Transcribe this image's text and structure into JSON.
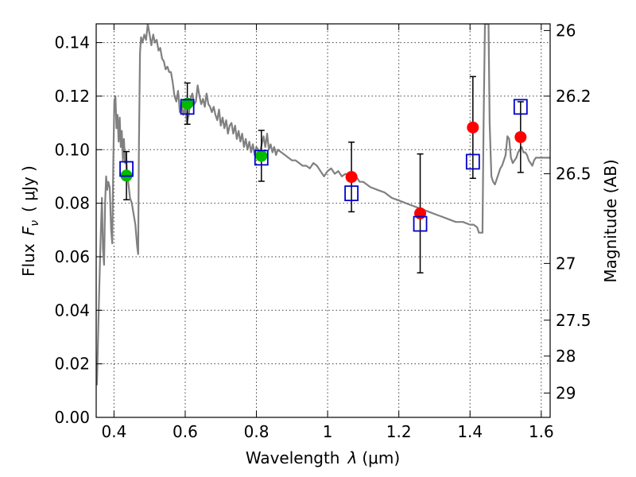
{
  "chart_data": {
    "type": "scatter",
    "xlabel_text": "Wavelength",
    "xlabel_symbol": "λ",
    "xlabel_unit": "(μm)",
    "ylabel_text": "Flux",
    "ylabel_symbol": "F",
    "ylabel_subscript": "ν",
    "ylabel_unit": "( μJy )",
    "y2label": "Magnitude (AB)",
    "xlim": [
      0.35,
      1.625
    ],
    "ylim": [
      0.0,
      0.147
    ],
    "grid": true,
    "x_ticks": [
      {
        "value": 0.4,
        "label": "0.4"
      },
      {
        "value": 0.6,
        "label": "0.6"
      },
      {
        "value": 0.8,
        "label": "0.8"
      },
      {
        "value": 1.0,
        "label": "1"
      },
      {
        "value": 1.2,
        "label": "1.2"
      },
      {
        "value": 1.4,
        "label": "1.4"
      },
      {
        "value": 1.6,
        "label": "1.6"
      }
    ],
    "y_ticks": [
      {
        "value": 0.0,
        "label": "0.00"
      },
      {
        "value": 0.02,
        "label": "0.02"
      },
      {
        "value": 0.04,
        "label": "0.04"
      },
      {
        "value": 0.06,
        "label": "0.06"
      },
      {
        "value": 0.08,
        "label": "0.08"
      },
      {
        "value": 0.1,
        "label": "0.10"
      },
      {
        "value": 0.12,
        "label": "0.12"
      },
      {
        "value": 0.14,
        "label": "0.14"
      }
    ],
    "y2_ticks": [
      {
        "flux": 0.1445,
        "label": "26"
      },
      {
        "flux": 0.12,
        "label": "26.2"
      },
      {
        "flux": 0.091,
        "label": "26.5"
      },
      {
        "flux": 0.0575,
        "label": "27"
      },
      {
        "flux": 0.0363,
        "label": "27.5"
      },
      {
        "flux": 0.0229,
        "label": "28"
      },
      {
        "flux": 0.0091,
        "label": "29"
      }
    ],
    "colors": {
      "model": "#808080",
      "green": "#00bb00",
      "red": "#ff0000",
      "blue": "#0000cc",
      "errorbar": "#000000"
    },
    "model_spectrum": [
      [
        0.352,
        0.012
      ],
      [
        0.358,
        0.045
      ],
      [
        0.362,
        0.065
      ],
      [
        0.366,
        0.082
      ],
      [
        0.369,
        0.063
      ],
      [
        0.372,
        0.057
      ],
      [
        0.375,
        0.08
      ],
      [
        0.378,
        0.09
      ],
      [
        0.381,
        0.085
      ],
      [
        0.384,
        0.088
      ],
      [
        0.388,
        0.086
      ],
      [
        0.392,
        0.07
      ],
      [
        0.395,
        0.065
      ],
      [
        0.398,
        0.095
      ],
      [
        0.401,
        0.118
      ],
      [
        0.404,
        0.12
      ],
      [
        0.407,
        0.108
      ],
      [
        0.41,
        0.113
      ],
      [
        0.413,
        0.103
      ],
      [
        0.416,
        0.112
      ],
      [
        0.419,
        0.101
      ],
      [
        0.422,
        0.107
      ],
      [
        0.425,
        0.096
      ],
      [
        0.428,
        0.104
      ],
      [
        0.431,
        0.095
      ],
      [
        0.434,
        0.099
      ],
      [
        0.437,
        0.09
      ],
      [
        0.44,
        0.088
      ],
      [
        0.445,
        0.082
      ],
      [
        0.45,
        0.08
      ],
      [
        0.455,
        0.076
      ],
      [
        0.46,
        0.072
      ],
      [
        0.465,
        0.064
      ],
      [
        0.468,
        0.061
      ],
      [
        0.47,
        0.1
      ],
      [
        0.473,
        0.136
      ],
      [
        0.476,
        0.142
      ],
      [
        0.48,
        0.14
      ],
      [
        0.485,
        0.143
      ],
      [
        0.49,
        0.141
      ],
      [
        0.495,
        0.147
      ],
      [
        0.5,
        0.143
      ],
      [
        0.505,
        0.139
      ],
      [
        0.51,
        0.143
      ],
      [
        0.515,
        0.14
      ],
      [
        0.52,
        0.141
      ],
      [
        0.525,
        0.137
      ],
      [
        0.53,
        0.138
      ],
      [
        0.535,
        0.134
      ],
      [
        0.54,
        0.133
      ],
      [
        0.545,
        0.13
      ],
      [
        0.55,
        0.131
      ],
      [
        0.555,
        0.129
      ],
      [
        0.56,
        0.129
      ],
      [
        0.565,
        0.125
      ],
      [
        0.57,
        0.12
      ],
      [
        0.575,
        0.118
      ],
      [
        0.58,
        0.122
      ],
      [
        0.585,
        0.114
      ],
      [
        0.59,
        0.117
      ],
      [
        0.595,
        0.113
      ],
      [
        0.6,
        0.116
      ],
      [
        0.605,
        0.11
      ],
      [
        0.61,
        0.113
      ],
      [
        0.615,
        0.119
      ],
      [
        0.62,
        0.121
      ],
      [
        0.625,
        0.117
      ],
      [
        0.63,
        0.118
      ],
      [
        0.635,
        0.124
      ],
      [
        0.64,
        0.12
      ],
      [
        0.645,
        0.117
      ],
      [
        0.65,
        0.119
      ],
      [
        0.655,
        0.116
      ],
      [
        0.66,
        0.121
      ],
      [
        0.665,
        0.117
      ],
      [
        0.67,
        0.116
      ],
      [
        0.675,
        0.114
      ],
      [
        0.68,
        0.116
      ],
      [
        0.685,
        0.113
      ],
      [
        0.69,
        0.111
      ],
      [
        0.695,
        0.115
      ],
      [
        0.7,
        0.109
      ],
      [
        0.705,
        0.112
      ],
      [
        0.71,
        0.108
      ],
      [
        0.715,
        0.111
      ],
      [
        0.72,
        0.106
      ],
      [
        0.725,
        0.109
      ],
      [
        0.73,
        0.11
      ],
      [
        0.735,
        0.106
      ],
      [
        0.74,
        0.109
      ],
      [
        0.745,
        0.104
      ],
      [
        0.75,
        0.107
      ],
      [
        0.755,
        0.103
      ],
      [
        0.76,
        0.106
      ],
      [
        0.765,
        0.101
      ],
      [
        0.77,
        0.104
      ],
      [
        0.775,
        0.1
      ],
      [
        0.78,
        0.103
      ],
      [
        0.785,
        0.099
      ],
      [
        0.79,
        0.102
      ],
      [
        0.795,
        0.098
      ],
      [
        0.8,
        0.101
      ],
      [
        0.81,
        0.099
      ],
      [
        0.82,
        0.105
      ],
      [
        0.825,
        0.101
      ],
      [
        0.83,
        0.106
      ],
      [
        0.835,
        0.1
      ],
      [
        0.84,
        0.102
      ],
      [
        0.845,
        0.099
      ],
      [
        0.85,
        0.101
      ],
      [
        0.855,
        0.098
      ],
      [
        0.86,
        0.1
      ],
      [
        0.87,
        0.099
      ],
      [
        0.88,
        0.098
      ],
      [
        0.89,
        0.097
      ],
      [
        0.9,
        0.096
      ],
      [
        0.91,
        0.096
      ],
      [
        0.92,
        0.095
      ],
      [
        0.93,
        0.094
      ],
      [
        0.94,
        0.094
      ],
      [
        0.95,
        0.093
      ],
      [
        0.96,
        0.095
      ],
      [
        0.97,
        0.094
      ],
      [
        0.98,
        0.092
      ],
      [
        0.99,
        0.09
      ],
      [
        1.0,
        0.092
      ],
      [
        1.01,
        0.093
      ],
      [
        1.02,
        0.091
      ],
      [
        1.03,
        0.092
      ],
      [
        1.04,
        0.09
      ],
      [
        1.05,
        0.091
      ],
      [
        1.06,
        0.09
      ],
      [
        1.07,
        0.089
      ],
      [
        1.08,
        0.09
      ],
      [
        1.09,
        0.088
      ],
      [
        1.1,
        0.088
      ],
      [
        1.12,
        0.086
      ],
      [
        1.14,
        0.085
      ],
      [
        1.16,
        0.084
      ],
      [
        1.18,
        0.082
      ],
      [
        1.2,
        0.081
      ],
      [
        1.22,
        0.08
      ],
      [
        1.24,
        0.079
      ],
      [
        1.26,
        0.078
      ],
      [
        1.28,
        0.077
      ],
      [
        1.3,
        0.076
      ],
      [
        1.32,
        0.075
      ],
      [
        1.34,
        0.074
      ],
      [
        1.36,
        0.073
      ],
      [
        1.38,
        0.073
      ],
      [
        1.4,
        0.072
      ],
      [
        1.41,
        0.072
      ],
      [
        1.42,
        0.071
      ],
      [
        1.425,
        0.069
      ],
      [
        1.43,
        0.069
      ],
      [
        1.435,
        0.069
      ],
      [
        1.438,
        0.11
      ],
      [
        1.442,
        0.147
      ],
      [
        1.45,
        0.147
      ],
      [
        1.452,
        0.147
      ],
      [
        1.455,
        0.11
      ],
      [
        1.46,
        0.09
      ],
      [
        1.465,
        0.088
      ],
      [
        1.47,
        0.087
      ],
      [
        1.475,
        0.089
      ],
      [
        1.48,
        0.091
      ],
      [
        1.485,
        0.093
      ],
      [
        1.49,
        0.094
      ],
      [
        1.495,
        0.096
      ],
      [
        1.5,
        0.098
      ],
      [
        1.505,
        0.105
      ],
      [
        1.51,
        0.104
      ],
      [
        1.515,
        0.097
      ],
      [
        1.52,
        0.095
      ],
      [
        1.525,
        0.096
      ],
      [
        1.53,
        0.097
      ],
      [
        1.535,
        0.099
      ],
      [
        1.54,
        0.1
      ],
      [
        1.545,
        0.101
      ],
      [
        1.55,
        0.099
      ],
      [
        1.555,
        0.099
      ],
      [
        1.56,
        0.098
      ],
      [
        1.565,
        0.096
      ],
      [
        1.57,
        0.095
      ],
      [
        1.575,
        0.094
      ],
      [
        1.58,
        0.096
      ],
      [
        1.585,
        0.097
      ],
      [
        1.59,
        0.097
      ],
      [
        1.6,
        0.097
      ],
      [
        1.61,
        0.097
      ],
      [
        1.62,
        0.097
      ],
      [
        1.625,
        0.097
      ]
    ],
    "observed_points": [
      {
        "x": 0.435,
        "y": 0.0903,
        "err": 0.009,
        "color": "green"
      },
      {
        "x": 0.606,
        "y": 0.1172,
        "err": 0.0077,
        "color": "green"
      },
      {
        "x": 0.814,
        "y": 0.0977,
        "err": 0.0095,
        "color": "green"
      },
      {
        "x": 1.067,
        "y": 0.0898,
        "err": 0.013,
        "color": "red"
      },
      {
        "x": 1.26,
        "y": 0.0762,
        "err": 0.0222,
        "color": "red"
      },
      {
        "x": 1.408,
        "y": 0.1083,
        "err": 0.019,
        "color": "red"
      },
      {
        "x": 1.542,
        "y": 0.1047,
        "err": 0.0132,
        "color": "red"
      }
    ],
    "model_points": [
      {
        "x": 0.435,
        "y": 0.0928
      },
      {
        "x": 0.606,
        "y": 0.116
      },
      {
        "x": 0.814,
        "y": 0.097
      },
      {
        "x": 1.067,
        "y": 0.0837
      },
      {
        "x": 1.26,
        "y": 0.0723
      },
      {
        "x": 1.408,
        "y": 0.0955
      },
      {
        "x": 1.542,
        "y": 0.116
      }
    ]
  }
}
